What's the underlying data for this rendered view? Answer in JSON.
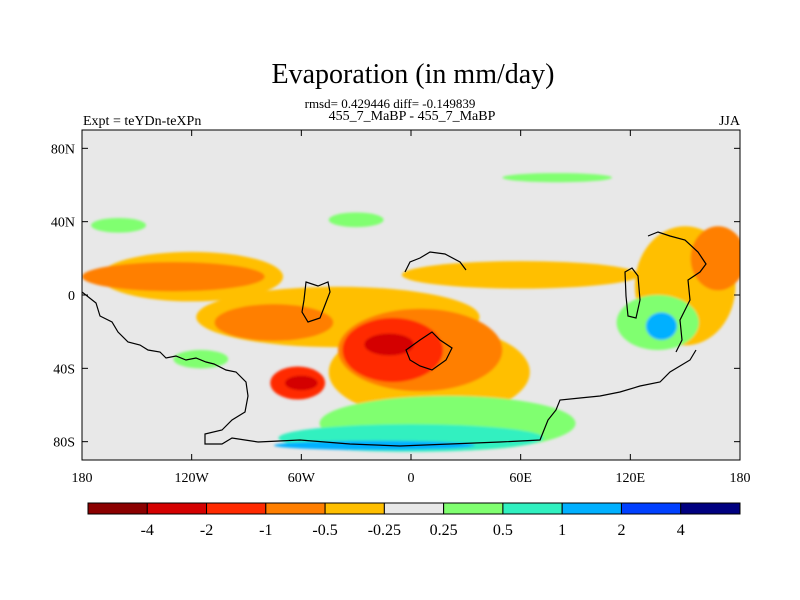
{
  "chart_data": {
    "type": "heatmap",
    "title": "Evaporation (in mm/day)",
    "stats_line": "rmsd= 0.429446 diff= -0.149839",
    "left_label": "Expt = teYDn-teXPn",
    "center_label": "455_7_MaBP - 455_7_MaBP",
    "right_label": "JJA",
    "projection": "cylindrical equidistant, lon 180W–180E, lat 90S–90N (land–sea outline overlaid)",
    "x_ticks": [
      "180",
      "120W",
      "60W",
      "0",
      "60E",
      "120E",
      "180"
    ],
    "x_tick_values": [
      -180,
      -120,
      -60,
      0,
      60,
      120,
      180
    ],
    "y_ticks": [
      "80N",
      "40N",
      "0",
      "40S",
      "80S"
    ],
    "y_tick_values": [
      80,
      40,
      0,
      -40,
      -80
    ],
    "xlim": [
      -180,
      180
    ],
    "ylim": [
      -90,
      90
    ],
    "colorbar": {
      "levels": [
        "-4",
        "-2",
        "-1",
        "-0.5",
        "-0.25",
        "0.25",
        "0.5",
        "1",
        "2",
        "4"
      ],
      "colors": [
        "#8b0000",
        "#d40000",
        "#ff2a00",
        "#ff7f00",
        "#ffbf00",
        "#e8e8e8",
        "#80ff70",
        "#30f0c0",
        "#00b0ff",
        "#0040ff",
        "#000080"
      ]
    },
    "regions": [
      {
        "class": 4,
        "value_range": [
          -0.5,
          -0.25
        ],
        "lon": [
          -180,
          -80
        ],
        "lat": [
          3,
          30
        ],
        "cx": -120,
        "cy": 10
      },
      {
        "class": 4,
        "value_range": [
          -0.5,
          -0.25
        ],
        "lon": [
          -110,
          45
        ],
        "lat": [
          -28,
          5
        ],
        "cx": -40,
        "cy": -12
      },
      {
        "class": 4,
        "value_range": [
          -0.5,
          -0.25
        ],
        "lon": [
          -30,
          80
        ],
        "lat": [
          -70,
          -20
        ],
        "cx": 10,
        "cy": -42
      },
      {
        "class": 4,
        "value_range": [
          -0.5,
          -0.25
        ],
        "lon": [
          0,
          130
        ],
        "lat": [
          5,
          20
        ],
        "cx": 60,
        "cy": 11
      },
      {
        "class": 3,
        "value_range": [
          -1,
          -0.5
        ],
        "lon": [
          -180,
          -80
        ],
        "lat": [
          2,
          18
        ],
        "cx": -130,
        "cy": 10
      },
      {
        "class": 3,
        "value_range": [
          -1,
          -0.5
        ],
        "lon": [
          -105,
          -40
        ],
        "lat": [
          -25,
          -5
        ],
        "cx": -75,
        "cy": -15
      },
      {
        "class": 3,
        "value_range": [
          -1,
          -0.5
        ],
        "lon": [
          -30,
          60
        ],
        "lat": [
          -55,
          -10
        ],
        "cx": 5,
        "cy": -30
      },
      {
        "class": 2,
        "value_range": [
          -2,
          -1
        ],
        "lon": [
          -35,
          20
        ],
        "lat": [
          -50,
          -15
        ],
        "cx": -10,
        "cy": -30
      },
      {
        "class": 1,
        "value_range": [
          -4,
          -2
        ],
        "lon": [
          -22,
          5
        ],
        "lat": [
          -32,
          -20
        ],
        "cx": -12,
        "cy": -27
      },
      {
        "class": 2,
        "value_range": [
          -2,
          -1
        ],
        "lon": [
          -75,
          -45
        ],
        "lat": [
          -58,
          -40
        ],
        "cx": -62,
        "cy": -48
      },
      {
        "class": 1,
        "value_range": [
          -4,
          -2
        ],
        "lon": [
          -68,
          -50
        ],
        "lat": [
          -52,
          -44
        ],
        "cx": -60,
        "cy": -48
      },
      {
        "class": 4,
        "value_range": [
          -0.5,
          -0.25
        ],
        "lon": [
          125,
          180
        ],
        "lat": [
          -30,
          35
        ],
        "cx": 150,
        "cy": 5
      },
      {
        "class": 3,
        "value_range": [
          -1,
          -0.5
        ],
        "lon": [
          150,
          180
        ],
        "lat": [
          0,
          35
        ],
        "cx": 168,
        "cy": 20
      },
      {
        "class": 6,
        "value_range": [
          0.25,
          0.5
        ],
        "lon": [
          -50,
          90
        ],
        "lat": [
          -85,
          -55
        ],
        "cx": 20,
        "cy": -70
      },
      {
        "class": 7,
        "value_range": [
          0.5,
          1
        ],
        "lon": [
          -75,
          70
        ],
        "lat": [
          -85,
          -70
        ],
        "cx": 0,
        "cy": -78
      },
      {
        "class": 8,
        "value_range": [
          1,
          2
        ],
        "lon": [
          -70,
          40
        ],
        "lat": [
          -85,
          -80
        ],
        "cx": -20,
        "cy": -82
      },
      {
        "class": 6,
        "value_range": [
          0.25,
          0.5
        ],
        "lon": [
          115,
          160
        ],
        "lat": [
          -35,
          -5
        ],
        "cx": 135,
        "cy": -15
      },
      {
        "class": 8,
        "value_range": [
          1,
          2
        ],
        "lon": [
          128,
          145
        ],
        "lat": [
          -25,
          -10
        ],
        "cx": 137,
        "cy": -17
      },
      {
        "class": 6,
        "value_range": [
          0.25,
          0.5
        ],
        "lon": [
          50,
          110
        ],
        "lat": [
          62,
          67
        ],
        "cx": 80,
        "cy": 64
      },
      {
        "class": 6,
        "value_range": [
          0.25,
          0.5
        ],
        "lon": [
          -175,
          -145
        ],
        "lat": [
          34,
          42
        ],
        "cx": -160,
        "cy": 38
      },
      {
        "class": 6,
        "value_range": [
          0.25,
          0.5
        ],
        "lon": [
          -45,
          -15
        ],
        "lat": [
          37,
          45
        ],
        "cx": -30,
        "cy": 41
      },
      {
        "class": 6,
        "value_range": [
          0.25,
          0.5
        ],
        "lon": [
          -130,
          -100
        ],
        "lat": [
          -30,
          -40
        ],
        "cx": -115,
        "cy": -35
      }
    ]
  }
}
